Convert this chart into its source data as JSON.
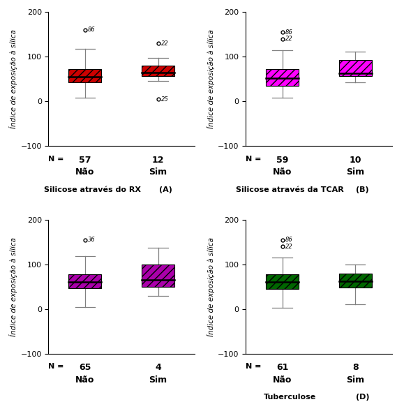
{
  "panels": [
    {
      "label": "(A)",
      "title": "Silicose através do RX",
      "groups": [
        "Não",
        "Sim"
      ],
      "ns": [
        57,
        12
      ],
      "medians": [
        55,
        65
      ],
      "q1": [
        42,
        57
      ],
      "q3": [
        72,
        80
      ],
      "whisker_low": [
        8,
        45
      ],
      "whisker_high": [
        118,
        98
      ],
      "outliers_val": [
        160,
        130,
        5
      ],
      "outlier_groups": [
        0,
        1,
        1
      ],
      "outlier_labels": [
        "86",
        "22",
        "25"
      ],
      "box_color": "#cc0000",
      "hatch": "///",
      "ylim": [
        -100,
        200
      ],
      "yticks": [
        -100,
        0,
        100,
        200
      ],
      "ylabel": "Índice de exposição à sílica",
      "show_ylabel": true,
      "row": 0,
      "col": 0
    },
    {
      "label": "(B)",
      "title": "Silicose através da TCAR",
      "groups": [
        "Não",
        "Sim"
      ],
      "ns": [
        59,
        10
      ],
      "medians": [
        52,
        63
      ],
      "q1": [
        35,
        57
      ],
      "q3": [
        72,
        93
      ],
      "whisker_low": [
        8,
        42
      ],
      "whisker_high": [
        115,
        112
      ],
      "outliers_val": [
        155,
        140
      ],
      "outlier_groups": [
        0,
        0
      ],
      "outlier_labels": [
        "86",
        "22"
      ],
      "box_color": "#ff00ff",
      "hatch": "///",
      "ylim": [
        -100,
        200
      ],
      "yticks": [
        -100,
        0,
        100,
        200
      ],
      "ylabel": "Índice de exposição à sílica",
      "show_ylabel": true,
      "row": 0,
      "col": 1
    },
    {
      "label": "",
      "title": "",
      "groups": [
        "Não",
        "Sim"
      ],
      "ns": [
        65,
        4
      ],
      "medians": [
        60,
        65
      ],
      "q1": [
        47,
        50
      ],
      "q3": [
        78,
        100
      ],
      "whisker_low": [
        5,
        30
      ],
      "whisker_high": [
        118,
        138
      ],
      "outliers_val": [
        155
      ],
      "outlier_groups": [
        0
      ],
      "outlier_labels": [
        "36"
      ],
      "box_color": "#aa00aa",
      "hatch": "///",
      "ylim": [
        -100,
        200
      ],
      "yticks": [
        -100,
        0,
        100,
        200
      ],
      "ylabel": "Índice de exposição à sílica",
      "show_ylabel": true,
      "row": 1,
      "col": 0
    },
    {
      "label": "(D)",
      "title": "Tuberculose",
      "groups": [
        "Não",
        "Sim"
      ],
      "ns": [
        61,
        8
      ],
      "medians": [
        60,
        62
      ],
      "q1": [
        45,
        48
      ],
      "q3": [
        78,
        80
      ],
      "whisker_low": [
        3,
        10
      ],
      "whisker_high": [
        115,
        100
      ],
      "outliers_val": [
        155,
        140
      ],
      "outlier_groups": [
        0,
        0
      ],
      "outlier_labels": [
        "86",
        "22"
      ],
      "box_color": "#006600",
      "hatch": "///",
      "ylim": [
        -100,
        200
      ],
      "yticks": [
        -100,
        0,
        100,
        200
      ],
      "ylabel": "Índice de exposição à sílica",
      "show_ylabel": true,
      "row": 1,
      "col": 1
    }
  ],
  "background_color": "#ffffff",
  "box_width": 0.45,
  "positions": [
    1,
    2
  ]
}
